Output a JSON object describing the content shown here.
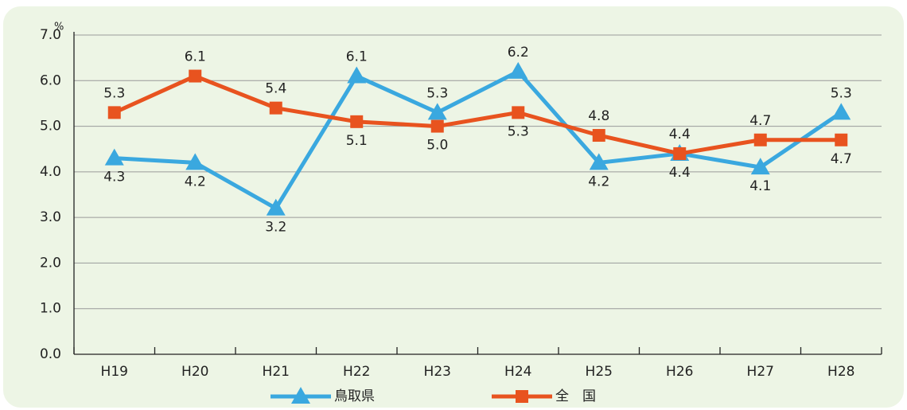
{
  "chart_data": {
    "type": "line",
    "y_unit": "%",
    "categories": [
      "H19",
      "H20",
      "H21",
      "H22",
      "H23",
      "H24",
      "H25",
      "H26",
      "H27",
      "H28"
    ],
    "series": [
      {
        "name": "鳥取県",
        "color": "#3aa8df",
        "marker": "triangle",
        "values": [
          4.3,
          4.2,
          3.2,
          6.1,
          5.3,
          6.2,
          4.2,
          4.4,
          4.1,
          5.3
        ],
        "value_labels": [
          "4.3",
          "4.2",
          "3.2",
          "6.1",
          "5.3",
          "6.2",
          "4.2",
          "4.4",
          "4.1",
          "5.3"
        ]
      },
      {
        "name": "全　国",
        "color": "#e8531f",
        "marker": "square",
        "values": [
          5.3,
          6.1,
          5.4,
          5.1,
          5.0,
          5.3,
          4.8,
          4.4,
          4.7,
          4.7
        ],
        "value_labels": [
          "5.3",
          "6.1",
          "5.4",
          "5.1",
          "5.0",
          "5.3",
          "4.8",
          "4.4",
          "4.7",
          "4.7"
        ]
      }
    ],
    "ylim": [
      0,
      7
    ],
    "yticks": [
      {
        "value": 0,
        "label": "0.0"
      },
      {
        "value": 1,
        "label": "1.0"
      },
      {
        "value": 2,
        "label": "2.0"
      },
      {
        "value": 3,
        "label": "3.0"
      },
      {
        "value": 4,
        "label": "4.0"
      },
      {
        "value": 5,
        "label": "5.0"
      },
      {
        "value": 6,
        "label": "6.0"
      },
      {
        "value": 7,
        "label": "7.0"
      }
    ],
    "grid": true,
    "legend": "bottom"
  }
}
